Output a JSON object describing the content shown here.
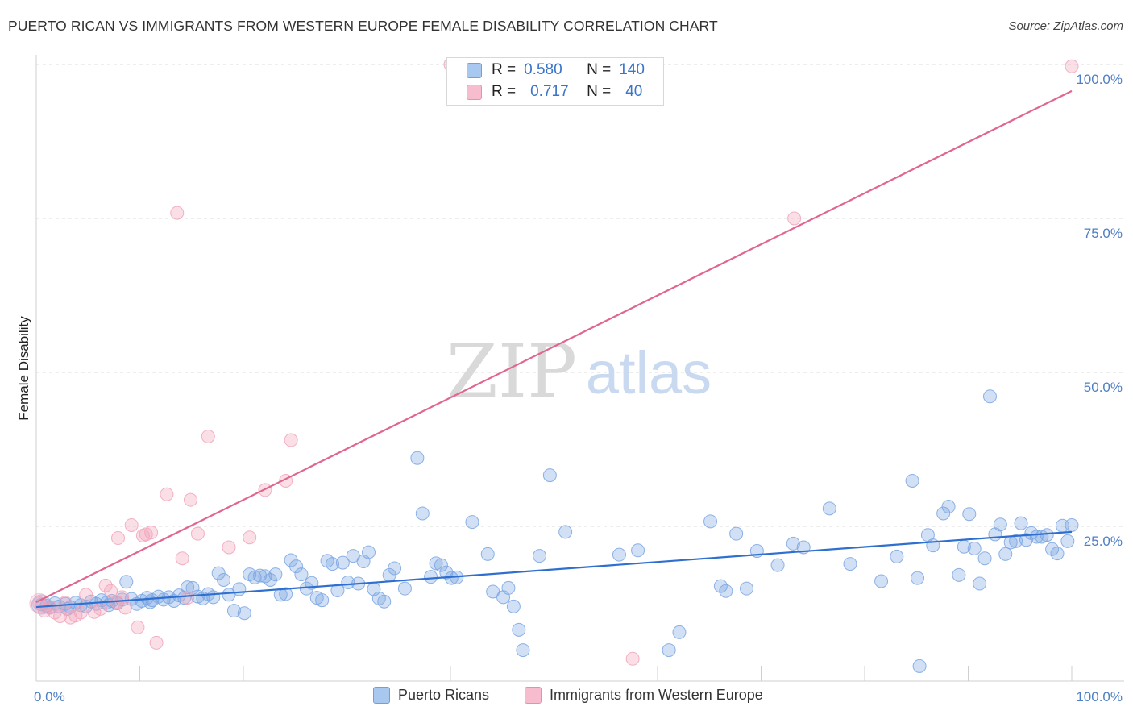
{
  "title": "PUERTO RICAN VS IMMIGRANTS FROM WESTERN EUROPE FEMALE DISABILITY CORRELATION CHART",
  "source": "Source: ZipAtlas.com",
  "watermark": {
    "zip": "ZIP",
    "atlas": "atlas"
  },
  "legend": {
    "rows": [
      {
        "r_label": "R =",
        "r_value": "0.580",
        "n_label": "N =",
        "n_value": "140",
        "color": "#a9c8f0",
        "border": "#6f9fdc"
      },
      {
        "r_label": "R =",
        "r_value": "0.717",
        "n_label": "N =",
        "n_value": "40",
        "color": "#f7bccd",
        "border": "#e890aa"
      }
    ]
  },
  "bottom_legend": [
    {
      "label": "Puerto Ricans",
      "color": "#a9c8f0",
      "border": "#6f9fdc"
    },
    {
      "label": "Immigrants from Western Europe",
      "color": "#f7bccd",
      "border": "#e890aa"
    }
  ],
  "chart_data": {
    "type": "scatter",
    "title": "PUERTO RICAN VS IMMIGRANTS FROM WESTERN EUROPE FEMALE DISABILITY CORRELATION CHART",
    "ylabel": "Female Disability",
    "xlabel": "",
    "xlim": [
      0,
      100
    ],
    "ylim": [
      0,
      100
    ],
    "x_tick_labels": [
      "0.0%",
      "100.0%"
    ],
    "y_tick_values": [
      25,
      50,
      75,
      100
    ],
    "y_tick_labels": [
      "25.0%",
      "50.0%",
      "75.0%",
      "100.0%"
    ],
    "grid": "horizontal dashed",
    "legend_placement": "top-center",
    "series": [
      {
        "name": "Puerto Ricans",
        "color": "#7aa6e2",
        "line_color": "#2f6fcf",
        "trend": {
          "x": [
            0,
            100
          ],
          "y": [
            11.9,
            24.1
          ]
        },
        "points": [
          [
            0.5,
            12.3
          ],
          [
            1.0,
            12.1
          ],
          [
            1.3,
            11.8
          ],
          [
            1.8,
            12.5
          ],
          [
            2.2,
            12.0
          ],
          [
            2.8,
            12.4
          ],
          [
            3.3,
            11.9
          ],
          [
            3.8,
            12.6
          ],
          [
            4.3,
            12.2
          ],
          [
            4.8,
            12.0
          ],
          [
            5.3,
            12.8
          ],
          [
            5.8,
            12.4
          ],
          [
            6.3,
            13.0
          ],
          [
            6.8,
            12.6
          ],
          [
            7.3,
            12.9
          ],
          [
            7.8,
            12.5
          ],
          [
            8.3,
            13.1
          ],
          [
            8.7,
            16.0
          ],
          [
            9.2,
            13.2
          ],
          [
            9.7,
            12.4
          ],
          [
            10.2,
            12.9
          ],
          [
            10.7,
            13.4
          ],
          [
            11.2,
            13.0
          ],
          [
            11.8,
            13.6
          ],
          [
            12.3,
            13.1
          ],
          [
            12.8,
            13.5
          ],
          [
            13.3,
            12.9
          ],
          [
            13.8,
            13.8
          ],
          [
            14.3,
            13.4
          ],
          [
            14.6,
            15.1
          ],
          [
            15.1,
            15.0
          ],
          [
            15.6,
            13.6
          ],
          [
            16.1,
            13.3
          ],
          [
            16.6,
            14.0
          ],
          [
            17.1,
            13.5
          ],
          [
            17.6,
            17.4
          ],
          [
            18.1,
            16.3
          ],
          [
            18.6,
            13.9
          ],
          [
            19.1,
            11.3
          ],
          [
            19.6,
            14.8
          ],
          [
            20.1,
            10.9
          ],
          [
            20.6,
            17.2
          ],
          [
            21.1,
            16.7
          ],
          [
            21.6,
            17.0
          ],
          [
            22.1,
            16.9
          ],
          [
            22.6,
            16.3
          ],
          [
            23.1,
            17.2
          ],
          [
            23.6,
            13.9
          ],
          [
            24.1,
            14.0
          ],
          [
            24.6,
            19.5
          ],
          [
            25.1,
            18.5
          ],
          [
            25.6,
            17.2
          ],
          [
            26.1,
            14.9
          ],
          [
            26.6,
            15.8
          ],
          [
            27.1,
            13.4
          ],
          [
            27.6,
            13.0
          ],
          [
            28.1,
            19.4
          ],
          [
            28.6,
            18.9
          ],
          [
            29.1,
            14.6
          ],
          [
            29.6,
            19.1
          ],
          [
            30.1,
            15.9
          ],
          [
            30.6,
            20.2
          ],
          [
            31.1,
            15.7
          ],
          [
            31.6,
            19.3
          ],
          [
            32.1,
            20.8
          ],
          [
            32.6,
            14.8
          ],
          [
            33.1,
            13.3
          ],
          [
            33.6,
            12.8
          ],
          [
            34.1,
            17.1
          ],
          [
            34.6,
            18.2
          ],
          [
            35.6,
            14.9
          ],
          [
            37.3,
            27.1
          ],
          [
            38.1,
            16.8
          ],
          [
            38.6,
            19.0
          ],
          [
            39.1,
            18.7
          ],
          [
            39.6,
            17.5
          ],
          [
            40.1,
            16.6
          ],
          [
            40.6,
            16.7
          ],
          [
            42.1,
            25.7
          ],
          [
            43.6,
            20.5
          ],
          [
            44.1,
            14.4
          ],
          [
            45.1,
            13.5
          ],
          [
            45.6,
            15.0
          ],
          [
            46.1,
            12.0
          ],
          [
            46.6,
            8.2
          ],
          [
            47.0,
            4.9
          ],
          [
            48.6,
            20.2
          ],
          [
            49.6,
            33.3
          ],
          [
            51.1,
            24.1
          ],
          [
            56.3,
            20.4
          ],
          [
            58.1,
            21.1
          ],
          [
            61.1,
            4.9
          ],
          [
            62.1,
            7.8
          ],
          [
            65.1,
            25.8
          ],
          [
            66.1,
            15.3
          ],
          [
            66.6,
            14.5
          ],
          [
            67.6,
            23.8
          ],
          [
            68.6,
            14.9
          ],
          [
            69.6,
            21.0
          ],
          [
            71.6,
            18.7
          ],
          [
            73.1,
            22.2
          ],
          [
            74.1,
            21.6
          ],
          [
            76.6,
            27.9
          ],
          [
            78.6,
            18.9
          ],
          [
            81.6,
            16.1
          ],
          [
            83.1,
            20.1
          ],
          [
            84.6,
            32.4
          ],
          [
            85.1,
            16.6
          ],
          [
            85.3,
            2.3
          ],
          [
            86.1,
            23.6
          ],
          [
            86.6,
            21.9
          ],
          [
            87.6,
            27.1
          ],
          [
            88.1,
            28.2
          ],
          [
            89.1,
            17.1
          ],
          [
            89.6,
            21.7
          ],
          [
            90.1,
            27.0
          ],
          [
            90.6,
            21.4
          ],
          [
            91.1,
            15.7
          ],
          [
            91.6,
            19.8
          ],
          [
            92.1,
            46.1
          ],
          [
            92.6,
            23.7
          ],
          [
            93.1,
            25.3
          ],
          [
            93.6,
            20.5
          ],
          [
            94.1,
            22.4
          ],
          [
            94.6,
            22.6
          ],
          [
            95.1,
            25.5
          ],
          [
            95.6,
            22.8
          ],
          [
            96.1,
            23.9
          ],
          [
            96.6,
            23.3
          ],
          [
            97.1,
            23.3
          ],
          [
            97.6,
            23.6
          ],
          [
            98.1,
            21.3
          ],
          [
            98.6,
            20.6
          ],
          [
            99.1,
            25.1
          ],
          [
            99.6,
            22.6
          ],
          [
            100.0,
            25.2
          ],
          [
            3.0,
            11.6
          ],
          [
            7.0,
            12.2
          ],
          [
            11.0,
            12.7
          ],
          [
            36.8,
            36.1
          ]
        ]
      },
      {
        "name": "Immigrants from Western Europe",
        "color": "#f2a3ba",
        "line_color": "#e0668f",
        "trend": {
          "x": [
            0,
            100
          ],
          "y": [
            12.7,
            95.7
          ]
        },
        "points": [
          [
            0.3,
            12.5
          ],
          [
            0.8,
            11.3
          ],
          [
            1.3,
            11.9
          ],
          [
            1.8,
            11.0
          ],
          [
            2.3,
            10.4
          ],
          [
            2.8,
            12.6
          ],
          [
            3.3,
            10.2
          ],
          [
            3.8,
            10.5
          ],
          [
            4.3,
            11.0
          ],
          [
            4.8,
            13.9
          ],
          [
            5.6,
            11.1
          ],
          [
            6.2,
            11.6
          ],
          [
            6.7,
            15.4
          ],
          [
            7.2,
            14.5
          ],
          [
            7.8,
            12.7
          ],
          [
            7.9,
            23.1
          ],
          [
            8.3,
            13.5
          ],
          [
            8.6,
            11.8
          ],
          [
            9.2,
            25.2
          ],
          [
            9.8,
            8.6
          ],
          [
            10.3,
            23.5
          ],
          [
            10.6,
            23.7
          ],
          [
            11.1,
            24.0
          ],
          [
            11.6,
            6.1
          ],
          [
            12.6,
            30.2
          ],
          [
            13.6,
            75.9
          ],
          [
            14.1,
            19.8
          ],
          [
            14.6,
            13.4
          ],
          [
            14.9,
            29.3
          ],
          [
            15.6,
            23.8
          ],
          [
            16.6,
            39.6
          ],
          [
            18.6,
            21.6
          ],
          [
            20.6,
            23.2
          ],
          [
            22.1,
            30.9
          ],
          [
            24.1,
            32.4
          ],
          [
            24.6,
            39.0
          ],
          [
            40.0,
            100.0
          ],
          [
            57.6,
            3.5
          ],
          [
            73.2,
            75.0
          ],
          [
            100.0,
            99.7
          ]
        ]
      }
    ]
  }
}
